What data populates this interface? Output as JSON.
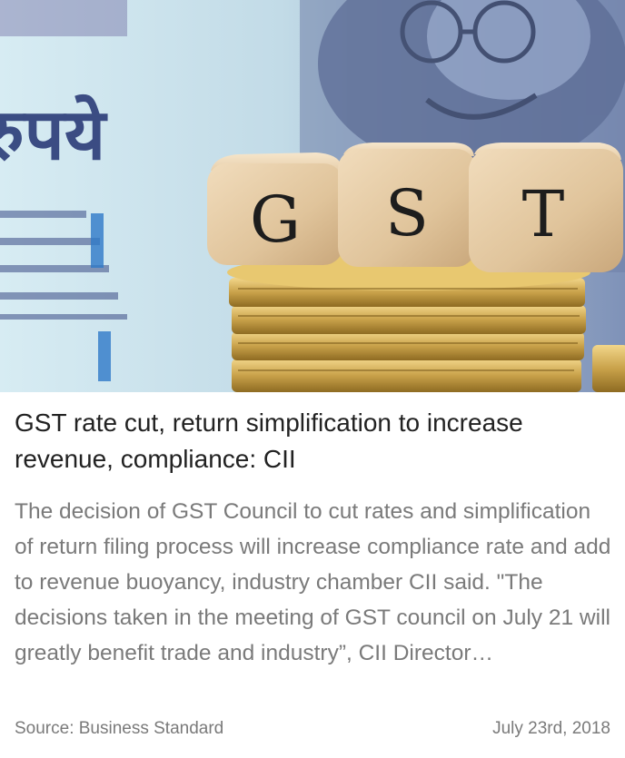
{
  "hero": {
    "note_text": "रुपये",
    "dice_letters": [
      "G",
      "S",
      "T"
    ]
  },
  "article": {
    "headline": "GST rate cut, return simplification to increase revenue, compliance: CII",
    "summary": "The decision of GST Council to cut rates and simplification of return filing process will increase compliance rate and add to revenue buoyancy, industry chamber CII said. \"The decisions taken in the meeting of GST council on July 21 will greatly benefit trade and industry”, CII Director…",
    "source": "Source: Business Standard",
    "date": "July 23rd, 2018"
  },
  "colors": {
    "headline": "#222222",
    "body": "#7a7a7a",
    "die_wood": "#e3c9a3",
    "coin_gold": "#c9a24a"
  }
}
